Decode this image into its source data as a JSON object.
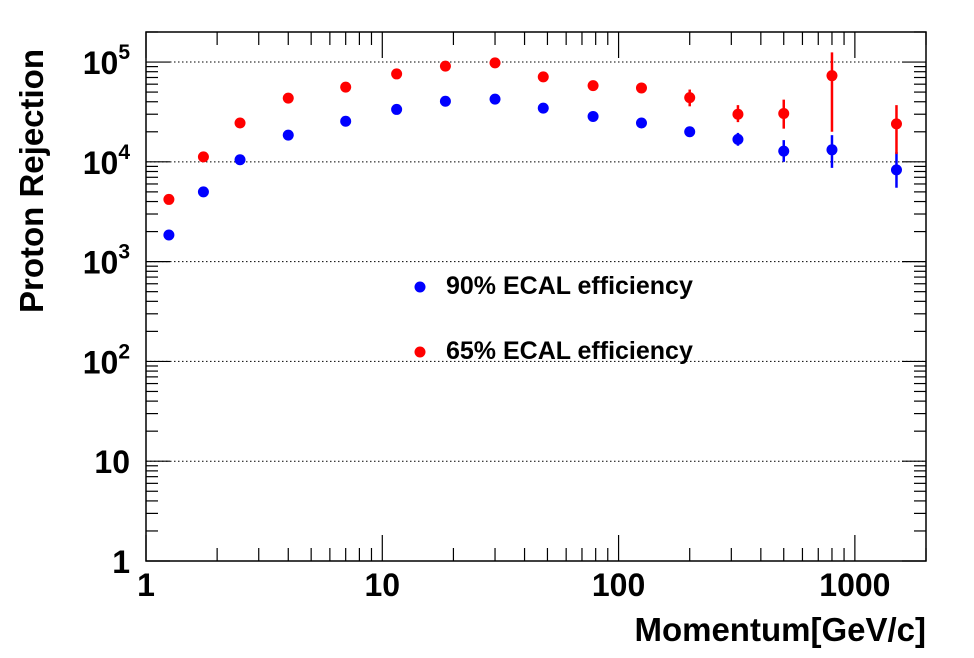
{
  "chart_data": {
    "type": "scatter",
    "xlabel": "Momentum[GeV/c]",
    "ylabel": "Proton Rejection",
    "xscale": "log",
    "yscale": "log",
    "xlim": [
      1,
      2000
    ],
    "ylim": [
      1,
      200000
    ],
    "grid": "horizontal dotted at major y ticks",
    "legend_placement": "center",
    "x_ticks": [
      {
        "value": 1,
        "label": "1"
      },
      {
        "value": 10,
        "label": "10"
      },
      {
        "value": 100,
        "label": "100"
      },
      {
        "value": 1000,
        "label": "1000"
      }
    ],
    "y_ticks": [
      {
        "value": 1,
        "base": "1",
        "exp": ""
      },
      {
        "value": 10,
        "base": "10",
        "exp": ""
      },
      {
        "value": 100,
        "base": "10",
        "exp": "2"
      },
      {
        "value": 1000,
        "base": "10",
        "exp": "3"
      },
      {
        "value": 10000,
        "base": "10",
        "exp": "4"
      },
      {
        "value": 100000,
        "base": "10",
        "exp": "5"
      }
    ],
    "series": [
      {
        "name": "90% ECAL efficiency",
        "color": "#0000ff",
        "points": [
          {
            "x": 1.25,
            "y": 1850
          },
          {
            "x": 1.75,
            "y": 5000
          },
          {
            "x": 2.5,
            "y": 10500
          },
          {
            "x": 4.0,
            "y": 18500
          },
          {
            "x": 7.0,
            "y": 25500
          },
          {
            "x": 11.5,
            "y": 33500
          },
          {
            "x": 18.5,
            "y": 40500
          },
          {
            "x": 30,
            "y": 42500
          },
          {
            "x": 48,
            "y": 34500
          },
          {
            "x": 78,
            "y": 28500
          },
          {
            "x": 125,
            "y": 24500
          },
          {
            "x": 200,
            "y": 20000
          },
          {
            "x": 320,
            "y": 16800,
            "ylo": 14500,
            "yhi": 19500
          },
          {
            "x": 500,
            "y": 12800,
            "ylo": 10000,
            "yhi": 16500
          },
          {
            "x": 800,
            "y": 13200,
            "ylo": 8700,
            "yhi": 18500
          },
          {
            "x": 1500,
            "y": 8300,
            "ylo": 5500,
            "yhi": 12500
          }
        ]
      },
      {
        "name": "65% ECAL efficiency",
        "color": "#ff0000",
        "points": [
          {
            "x": 1.25,
            "y": 4200
          },
          {
            "x": 1.75,
            "y": 11200
          },
          {
            "x": 2.5,
            "y": 24500
          },
          {
            "x": 4.0,
            "y": 43500
          },
          {
            "x": 7.0,
            "y": 56000
          },
          {
            "x": 11.5,
            "y": 76000
          },
          {
            "x": 18.5,
            "y": 91000
          },
          {
            "x": 30,
            "y": 98000
          },
          {
            "x": 48,
            "y": 71000
          },
          {
            "x": 78,
            "y": 58000
          },
          {
            "x": 125,
            "y": 55000
          },
          {
            "x": 200,
            "y": 44000,
            "ylo": 36000,
            "yhi": 53000
          },
          {
            "x": 320,
            "y": 30000,
            "ylo": 25000,
            "yhi": 37000
          },
          {
            "x": 500,
            "y": 30500,
            "ylo": 21500,
            "yhi": 42000
          },
          {
            "x": 800,
            "y": 73000,
            "ylo": 20000,
            "yhi": 125000
          },
          {
            "x": 1500,
            "y": 24000,
            "ylo": 12000,
            "yhi": 37000
          }
        ]
      }
    ]
  }
}
